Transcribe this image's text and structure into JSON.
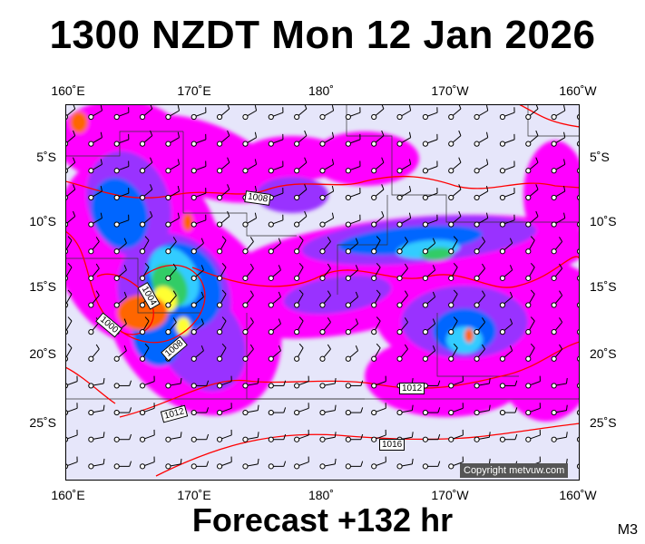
{
  "title": "1300 NZDT Mon 12 Jan 2026",
  "footer": "Forecast +132 hr",
  "code": "M3",
  "copyright": "Copyright metvuw.com",
  "lon_labels": [
    "160˚E",
    "170˚E",
    "180˚",
    "170˚W",
    "160˚W"
  ],
  "lat_labels": [
    "5˚S",
    "10˚S",
    "15˚S",
    "20˚S",
    "25˚S"
  ],
  "isobar_labels": [
    "1008",
    "1004",
    "1000",
    "1008",
    "1012",
    "1012",
    "1016"
  ],
  "colors": {
    "ocean": "#e6e6fa",
    "isobar": "#ff0000",
    "precip_light": "#ff00ff",
    "precip_mod": "#9933ff",
    "precip_heavy": "#0066ff",
    "precip_cyan": "#33ccff",
    "precip_green": "#33cc66",
    "precip_yellow": "#ffff33",
    "precip_orange": "#ff6600"
  }
}
